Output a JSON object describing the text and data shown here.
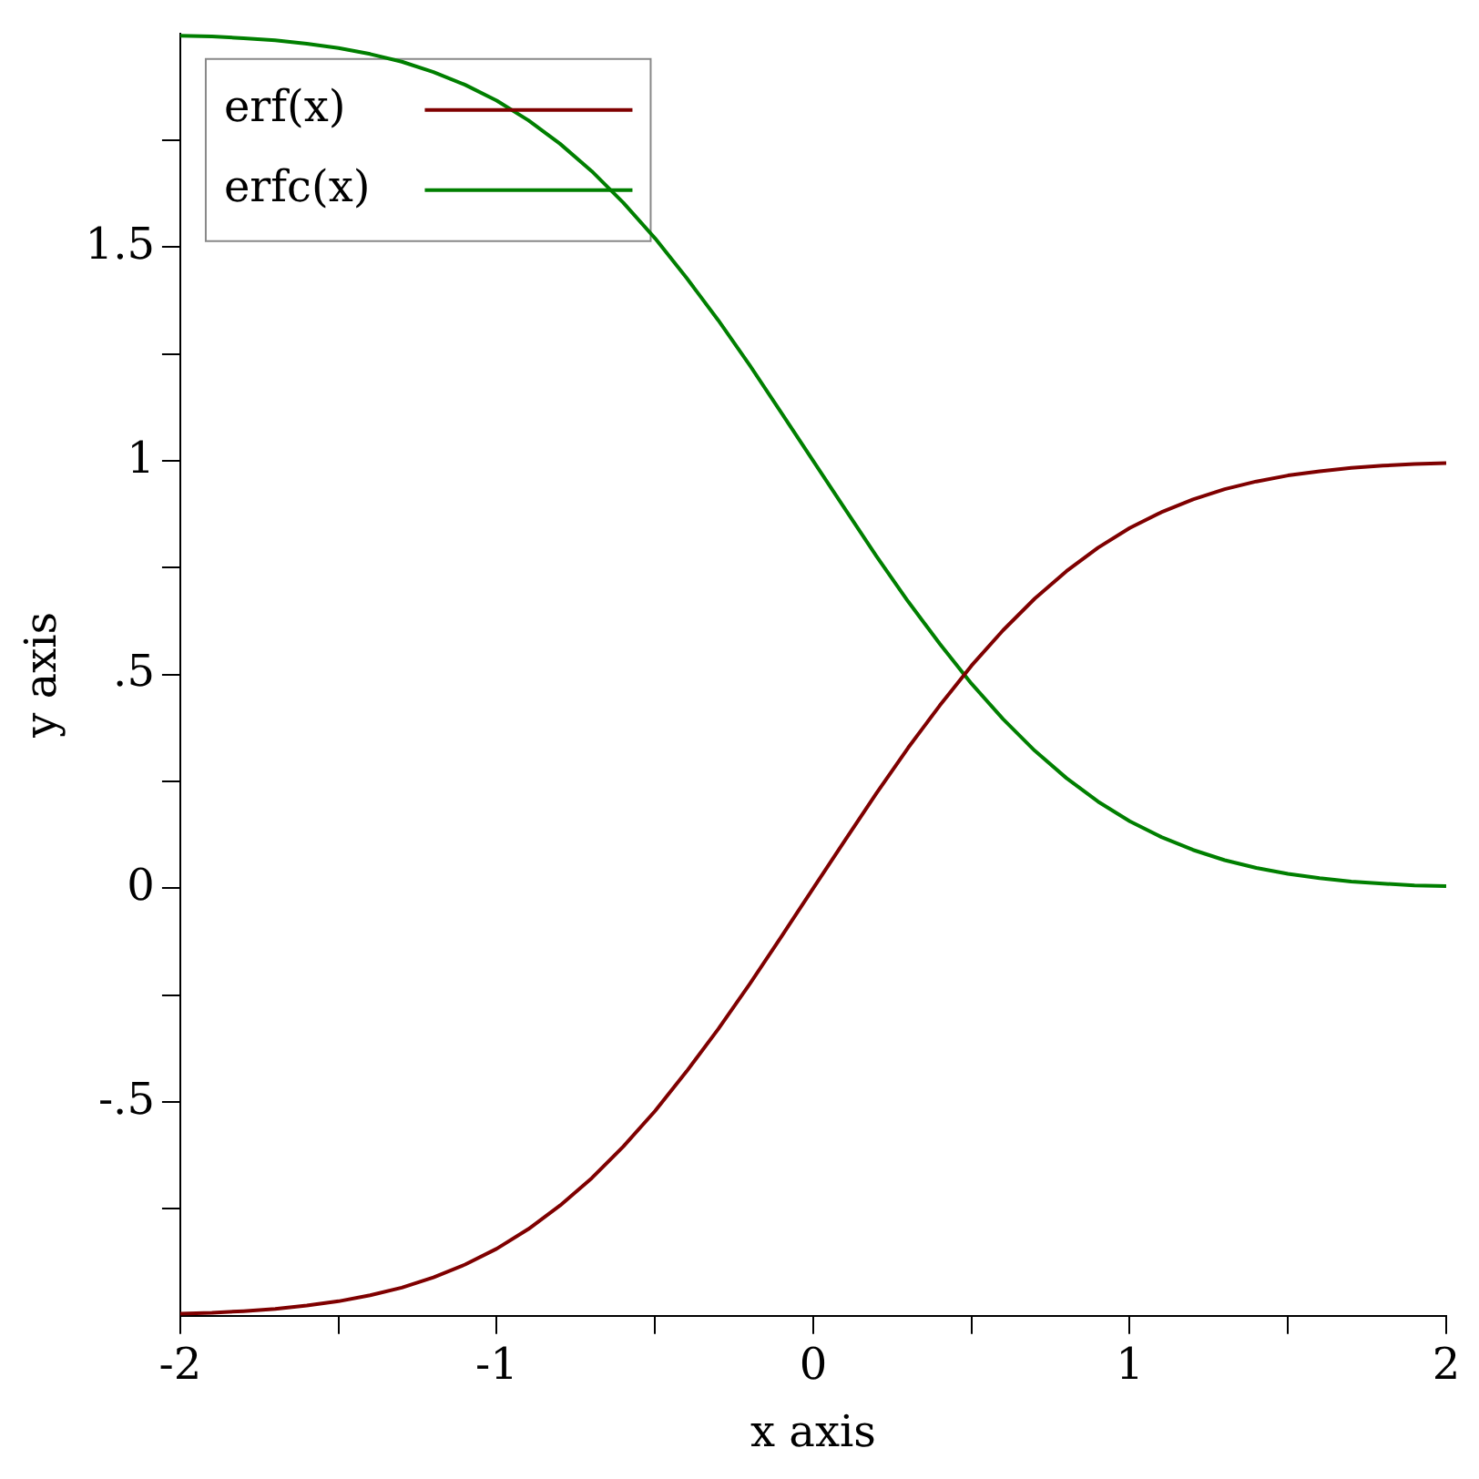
{
  "chart_data": {
    "type": "line",
    "xlabel": "x axis",
    "ylabel": "y axis",
    "x": [
      -2,
      -1.9,
      -1.8,
      -1.7,
      -1.6,
      -1.5,
      -1.4,
      -1.3,
      -1.2,
      -1.1,
      -1,
      -0.9,
      -0.8,
      -0.7,
      -0.6,
      -0.5,
      -0.4,
      -0.3,
      -0.2,
      -0.1,
      0,
      0.1,
      0.2,
      0.3,
      0.4,
      0.5,
      0.6,
      0.7,
      0.8,
      0.9,
      1,
      1.1,
      1.2,
      1.3,
      1.4,
      1.5,
      1.6,
      1.7,
      1.8,
      1.9,
      2
    ],
    "series": [
      {
        "name": "erf(x)",
        "color": "#7f0000",
        "values": [
          -0.995,
          -0.993,
          -0.989,
          -0.984,
          -0.976,
          -0.966,
          -0.952,
          -0.934,
          -0.91,
          -0.88,
          -0.843,
          -0.797,
          -0.742,
          -0.678,
          -0.604,
          -0.521,
          -0.428,
          -0.329,
          -0.223,
          -0.112,
          0,
          0.112,
          0.223,
          0.329,
          0.428,
          0.521,
          0.604,
          0.678,
          0.742,
          0.797,
          0.843,
          0.88,
          0.91,
          0.934,
          0.952,
          0.966,
          0.976,
          0.984,
          0.989,
          0.993,
          0.995
        ]
      },
      {
        "name": "erfc(x)",
        "color": "#007f00",
        "values": [
          1.995,
          1.993,
          1.989,
          1.984,
          1.976,
          1.966,
          1.952,
          1.934,
          1.91,
          1.88,
          1.843,
          1.797,
          1.742,
          1.678,
          1.604,
          1.521,
          1.428,
          1.329,
          1.223,
          1.112,
          1,
          0.888,
          0.777,
          0.671,
          0.572,
          0.479,
          0.396,
          0.322,
          0.258,
          0.203,
          0.157,
          0.12,
          0.09,
          0.066,
          0.048,
          0.034,
          0.024,
          0.016,
          0.011,
          0.007,
          0.005
        ]
      }
    ],
    "xlim": [
      -2,
      2
    ],
    "ylim": [
      -1,
      2
    ],
    "xticks": [
      -2,
      {
        "value": -1.5,
        "label": null
      },
      -1,
      {
        "value": -0.5,
        "label": null
      },
      0,
      {
        "value": 0.5,
        "label": null
      },
      1,
      {
        "value": 1.5,
        "label": null
      },
      2
    ],
    "yticks": [
      {
        "value": -0.75,
        "label": null
      },
      {
        "value": -0.5,
        "label": "-.5"
      },
      {
        "value": -0.25,
        "label": null
      },
      0,
      {
        "value": 0.25,
        "label": null
      },
      {
        "value": 0.5,
        "label": ".5"
      },
      {
        "value": 0.75,
        "label": null
      },
      1,
      {
        "value": 1.25,
        "label": null
      },
      1.5,
      {
        "value": 1.75,
        "label": null
      }
    ],
    "legend": "top left",
    "marker": "none",
    "line_style": "solid"
  }
}
